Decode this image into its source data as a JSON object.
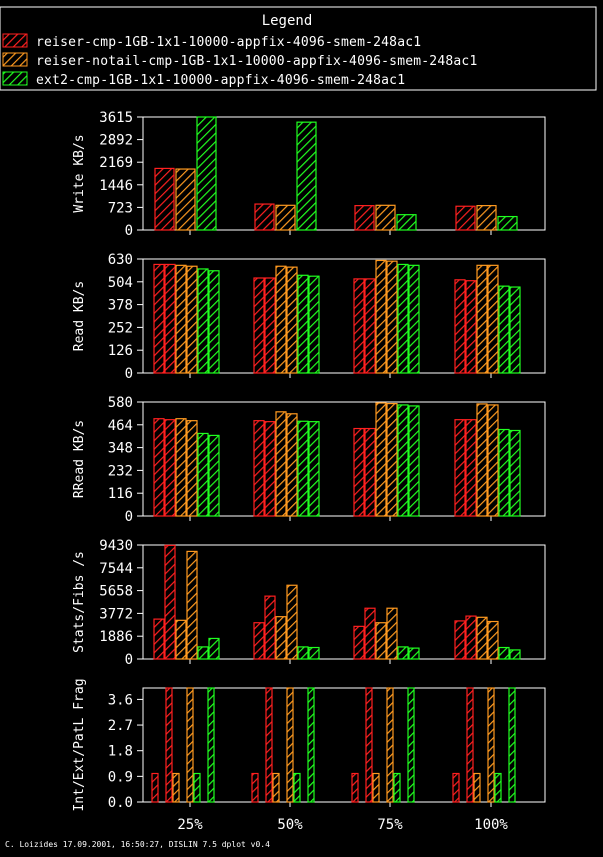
{
  "legend": {
    "title": "Legend",
    "entries": [
      {
        "label": "reiser-cmp-1GB-1x1-10000-appfix-4096-smem-248ac1",
        "color": "#ff2020"
      },
      {
        "label": "reiser-notail-cmp-1GB-1x1-10000-appfix-4096-smem-248ac1",
        "color": "#ff9a20"
      },
      {
        "label": "ext2-cmp-1GB-1x1-10000-appfix-4096-smem-248ac1",
        "color": "#20ff20"
      }
    ]
  },
  "footer": "C. Loizides 17.09.2001, 16:50:27, DISLIN 7.5 dplot v0.4",
  "chart_data": [
    {
      "type": "bar",
      "ylabel": "Write KB/s",
      "categories": [
        "25%",
        "50%",
        "75%",
        "100%"
      ],
      "yticks": [
        0,
        723,
        1446,
        2169,
        2892,
        3615
      ],
      "ylim": [
        0,
        3615
      ],
      "series": [
        {
          "name": "reiser-cmp-1GB-1x1-10000-appfix-4096-smem-248ac1",
          "values": [
            1970,
            830,
            780,
            760
          ]
        },
        {
          "name": "reiser-notail-cmp-1GB-1x1-10000-appfix-4096-smem-248ac1",
          "values": [
            1950,
            790,
            790,
            780
          ]
        },
        {
          "name": "ext2-cmp-1GB-1x1-10000-appfix-4096-smem-248ac1",
          "values": [
            3615,
            3450,
            490,
            430
          ]
        }
      ]
    },
    {
      "type": "bar",
      "ylabel": "Read KB/s",
      "categories": [
        "25%",
        "50%",
        "75%",
        "100%"
      ],
      "yticks": [
        0,
        126,
        252,
        378,
        504,
        630
      ],
      "ylim": [
        0,
        630
      ],
      "series": [
        {
          "name": "reiser-cmp-1GB-1x1-10000-appfix-4096-smem-248ac1",
          "values": [
            [
              600,
              600
            ],
            [
              525,
              525
            ],
            [
              520,
              520
            ],
            [
              515,
              510
            ]
          ]
        },
        {
          "name": "reiser-notail-cmp-1GB-1x1-10000-appfix-4096-smem-248ac1",
          "values": [
            [
              595,
              590
            ],
            [
              590,
              585
            ],
            [
              622,
              618
            ],
            [
              595,
              595
            ]
          ]
        },
        {
          "name": "ext2-cmp-1GB-1x1-10000-appfix-4096-smem-248ac1",
          "values": [
            [
              575,
              565
            ],
            [
              540,
              535
            ],
            [
              600,
              595
            ],
            [
              480,
              475
            ]
          ]
        }
      ]
    },
    {
      "type": "bar",
      "ylabel": "RRead KB/s",
      "categories": [
        "25%",
        "50%",
        "75%",
        "100%"
      ],
      "yticks": [
        0,
        116,
        232,
        348,
        464,
        580
      ],
      "ylim": [
        0,
        580
      ],
      "series": [
        {
          "name": "reiser-cmp-1GB-1x1-10000-appfix-4096-smem-248ac1",
          "values": [
            [
              495,
              490
            ],
            [
              485,
              480
            ],
            [
              445,
              445
            ],
            [
              490,
              490
            ]
          ]
        },
        {
          "name": "reiser-notail-cmp-1GB-1x1-10000-appfix-4096-smem-248ac1",
          "values": [
            [
              495,
              485
            ],
            [
              530,
              520
            ],
            [
              575,
              572
            ],
            [
              570,
              565
            ]
          ]
        },
        {
          "name": "ext2-cmp-1GB-1x1-10000-appfix-4096-smem-248ac1",
          "values": [
            [
              420,
              410
            ],
            [
              482,
              480
            ],
            [
              565,
              560
            ],
            [
              440,
              435
            ]
          ]
        }
      ]
    },
    {
      "type": "bar",
      "ylabel": "Stats/Fibs /s",
      "categories": [
        "25%",
        "50%",
        "75%",
        "100%"
      ],
      "yticks": [
        0,
        1886,
        3772,
        5658,
        7544,
        9430
      ],
      "ylim": [
        0,
        9430
      ],
      "series": [
        {
          "name": "reiser-cmp-1GB-1x1-10000-appfix-4096-smem-248ac1",
          "values": [
            [
              3300,
              9400
            ],
            [
              3000,
              5200
            ],
            [
              2700,
              4200
            ],
            [
              3150,
              3550
            ]
          ]
        },
        {
          "name": "reiser-notail-cmp-1GB-1x1-10000-appfix-4096-smem-248ac1",
          "values": [
            [
              3200,
              8900
            ],
            [
              3500,
              6100
            ],
            [
              3000,
              4200
            ],
            [
              3450,
              3100
            ]
          ]
        },
        {
          "name": "ext2-cmp-1GB-1x1-10000-appfix-4096-smem-248ac1",
          "values": [
            [
              1000,
              1700
            ],
            [
              1000,
              950
            ],
            [
              1000,
              900
            ],
            [
              950,
              750
            ]
          ]
        }
      ]
    },
    {
      "type": "bar",
      "ylabel": "Int/Ext/PatL Frag",
      "categories": [
        "25%",
        "50%",
        "75%",
        "100%"
      ],
      "yticks": [
        0.0,
        0.9,
        1.8,
        2.7,
        3.6
      ],
      "tick_labels": [
        "0.0",
        "0.9",
        "1.8",
        "2.7",
        "3.6"
      ],
      "ylim": [
        0,
        4.0
      ],
      "series": [
        {
          "name": "reiser-cmp-1GB-1x1-10000-appfix-4096-smem-248ac1",
          "values": [
            [
              1.0,
              0.0,
              4.0
            ],
            [
              1.0,
              0.0,
              4.0
            ],
            [
              1.0,
              0.0,
              4.0
            ],
            [
              1.0,
              0.0,
              4.0
            ]
          ]
        },
        {
          "name": "reiser-notail-cmp-1GB-1x1-10000-appfix-4096-smem-248ac1",
          "values": [
            [
              1.0,
              0.0,
              4.0
            ],
            [
              1.0,
              0.0,
              4.0
            ],
            [
              1.0,
              0.0,
              4.0
            ],
            [
              1.0,
              0.0,
              4.0
            ]
          ]
        },
        {
          "name": "ext2-cmp-1GB-1x1-10000-appfix-4096-smem-248ac1",
          "values": [
            [
              1.0,
              0.0,
              4.0
            ],
            [
              1.0,
              0.0,
              4.0
            ],
            [
              1.0,
              0.0,
              4.0
            ],
            [
              1.0,
              0.0,
              4.0
            ]
          ]
        }
      ]
    }
  ]
}
